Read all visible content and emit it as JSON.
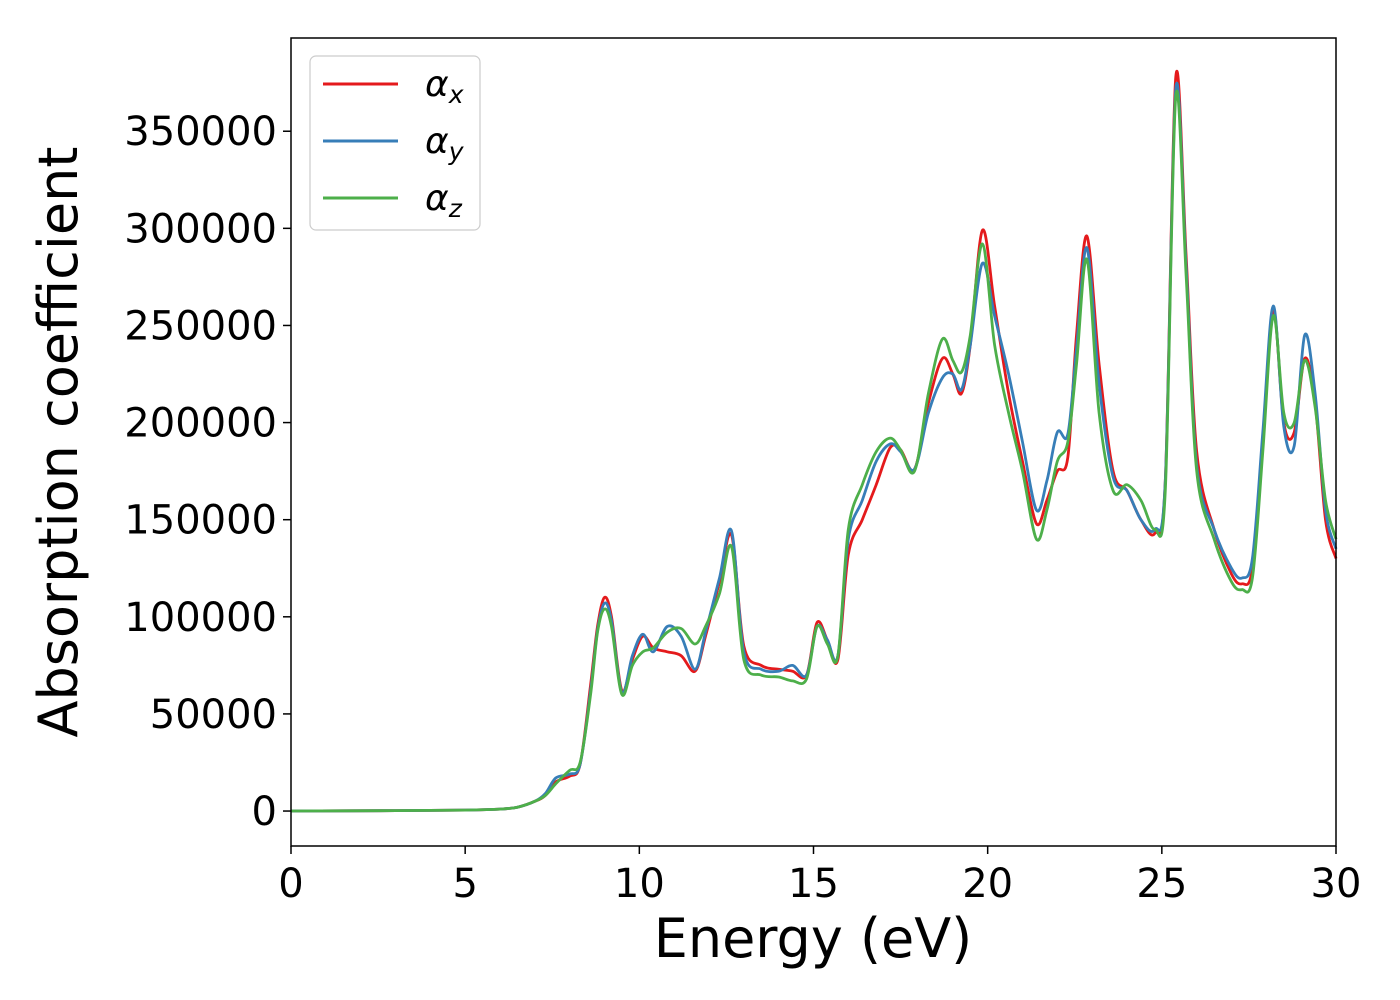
{
  "chart_data": {
    "type": "line",
    "title": "",
    "xlabel": "Energy (eV)",
    "ylabel": "Absorption coefficient",
    "xlim": [
      0,
      30
    ],
    "ylim": [
      -18000,
      398000
    ],
    "xticks": [
      0,
      5,
      10,
      15,
      20,
      25,
      30
    ],
    "yticks": [
      0,
      50000,
      100000,
      150000,
      200000,
      250000,
      300000,
      350000
    ],
    "xtick_labels": [
      "0",
      "5",
      "10",
      "15",
      "20",
      "25",
      "30"
    ],
    "ytick_labels": [
      "0",
      "50000",
      "100000",
      "150000",
      "200000",
      "250000",
      "300000",
      "350000"
    ],
    "grid": false,
    "legend_position": "top-left",
    "series": [
      {
        "name": "αx",
        "symbol": "α",
        "subscript": "x",
        "color": "#e41a1c",
        "x": [
          0,
          3,
          5,
          6,
          6.5,
          7,
          7.3,
          7.6,
          8,
          8.3,
          8.6,
          8.8,
          9,
          9.2,
          9.5,
          9.8,
          10.1,
          10.4,
          10.8,
          11.2,
          11.6,
          11.9,
          12.3,
          12.65,
          13,
          13.5,
          14,
          14.4,
          14.8,
          15.1,
          15.4,
          15.7,
          16,
          16.4,
          16.8,
          17.2,
          17.5,
          17.9,
          18.3,
          18.7,
          19,
          19.25,
          19.5,
          19.85,
          20.2,
          20.6,
          21,
          21.4,
          21.7,
          22,
          22.3,
          22.55,
          22.85,
          23.2,
          23.6,
          24,
          24.4,
          24.8,
          25.1,
          25.4,
          25.7,
          26,
          26.5,
          27,
          27.3,
          27.6,
          27.9,
          28.2,
          28.5,
          28.8,
          29.1,
          29.4,
          29.7,
          30
        ],
        "values": [
          0,
          200,
          500,
          1000,
          2000,
          5000,
          8000,
          15000,
          18000,
          24000,
          65000,
          95000,
          110000,
          100000,
          62000,
          78000,
          90000,
          84000,
          82000,
          80000,
          72000,
          90000,
          118000,
          142000,
          85000,
          75000,
          73000,
          72000,
          70000,
          97000,
          88000,
          78000,
          132000,
          150000,
          168000,
          187000,
          186000,
          176000,
          210000,
          233000,
          225000,
          215000,
          240000,
          299000,
          260000,
          215000,
          180000,
          148000,
          160000,
          175000,
          182000,
          245000,
          296000,
          230000,
          175000,
          165000,
          150000,
          143000,
          170000,
          378000,
          285000,
          185000,
          145000,
          122000,
          117000,
          125000,
          190000,
          258000,
          200000,
          195000,
          233000,
          210000,
          150000,
          130000
        ]
      },
      {
        "name": "αy",
        "symbol": "α",
        "subscript": "y",
        "color": "#377eb8",
        "x": [
          0,
          3,
          5,
          6,
          6.5,
          7,
          7.3,
          7.6,
          8,
          8.3,
          8.6,
          8.8,
          9,
          9.2,
          9.5,
          9.8,
          10.1,
          10.4,
          10.8,
          11.2,
          11.6,
          11.9,
          12.3,
          12.65,
          13,
          13.5,
          14,
          14.4,
          14.8,
          15.1,
          15.4,
          15.7,
          16,
          16.4,
          16.8,
          17.2,
          17.5,
          17.9,
          18.3,
          18.7,
          19,
          19.25,
          19.5,
          19.85,
          20.2,
          20.6,
          21,
          21.4,
          21.7,
          22,
          22.3,
          22.55,
          22.85,
          23.2,
          23.6,
          24,
          24.4,
          24.8,
          25.1,
          25.4,
          25.7,
          26,
          26.5,
          27,
          27.3,
          27.6,
          27.9,
          28.2,
          28.5,
          28.8,
          29.1,
          29.4,
          29.7,
          30
        ],
        "values": [
          0,
          200,
          500,
          1000,
          2000,
          5000,
          9000,
          17000,
          19000,
          24000,
          62000,
          93000,
          107000,
          98000,
          61000,
          80000,
          91000,
          82000,
          95000,
          90000,
          73000,
          92000,
          120000,
          144000,
          82000,
          73000,
          72000,
          75000,
          70000,
          95000,
          88000,
          80000,
          140000,
          160000,
          180000,
          189000,
          185000,
          176000,
          205000,
          223000,
          225000,
          217000,
          240000,
          282000,
          255000,
          225000,
          190000,
          155000,
          170000,
          195000,
          194000,
          238000,
          290000,
          220000,
          172000,
          165000,
          150000,
          145000,
          170000,
          372000,
          280000,
          178000,
          145000,
          125000,
          120000,
          130000,
          195000,
          260000,
          198000,
          188000,
          245000,
          215000,
          155000,
          135000
        ]
      },
      {
        "name": "αz",
        "symbol": "α",
        "subscript": "z",
        "color": "#4daf4a",
        "x": [
          0,
          3,
          5,
          6,
          6.5,
          7,
          7.3,
          7.6,
          8,
          8.3,
          8.6,
          8.8,
          9,
          9.2,
          9.5,
          9.8,
          10.1,
          10.4,
          10.8,
          11.2,
          11.6,
          11.9,
          12.3,
          12.65,
          13,
          13.5,
          14,
          14.4,
          14.8,
          15.1,
          15.4,
          15.7,
          16,
          16.4,
          16.8,
          17.2,
          17.5,
          17.9,
          18.3,
          18.7,
          19,
          19.25,
          19.5,
          19.85,
          20.2,
          20.6,
          21,
          21.4,
          21.7,
          22,
          22.3,
          22.55,
          22.85,
          23.2,
          23.6,
          24,
          24.4,
          24.8,
          25.1,
          25.4,
          25.7,
          26,
          26.5,
          27,
          27.3,
          27.6,
          27.9,
          28.2,
          28.5,
          28.8,
          29.1,
          29.4,
          29.7,
          30
        ],
        "values": [
          0,
          200,
          500,
          1000,
          2000,
          5000,
          8000,
          14000,
          21000,
          25000,
          60000,
          92000,
          104000,
          95000,
          60000,
          75000,
          82000,
          84000,
          92000,
          94000,
          86000,
          95000,
          112000,
          136000,
          78000,
          70000,
          69000,
          67000,
          68000,
          95000,
          86000,
          80000,
          145000,
          168000,
          185000,
          192000,
          186000,
          175000,
          215000,
          243000,
          232000,
          226000,
          245000,
          292000,
          240000,
          205000,
          175000,
          140000,
          155000,
          180000,
          190000,
          230000,
          284000,
          205000,
          165000,
          168000,
          160000,
          145000,
          165000,
          368000,
          275000,
          175000,
          140000,
          118000,
          114000,
          120000,
          185000,
          255000,
          205000,
          200000,
          232000,
          208000,
          160000,
          140000
        ]
      }
    ]
  }
}
